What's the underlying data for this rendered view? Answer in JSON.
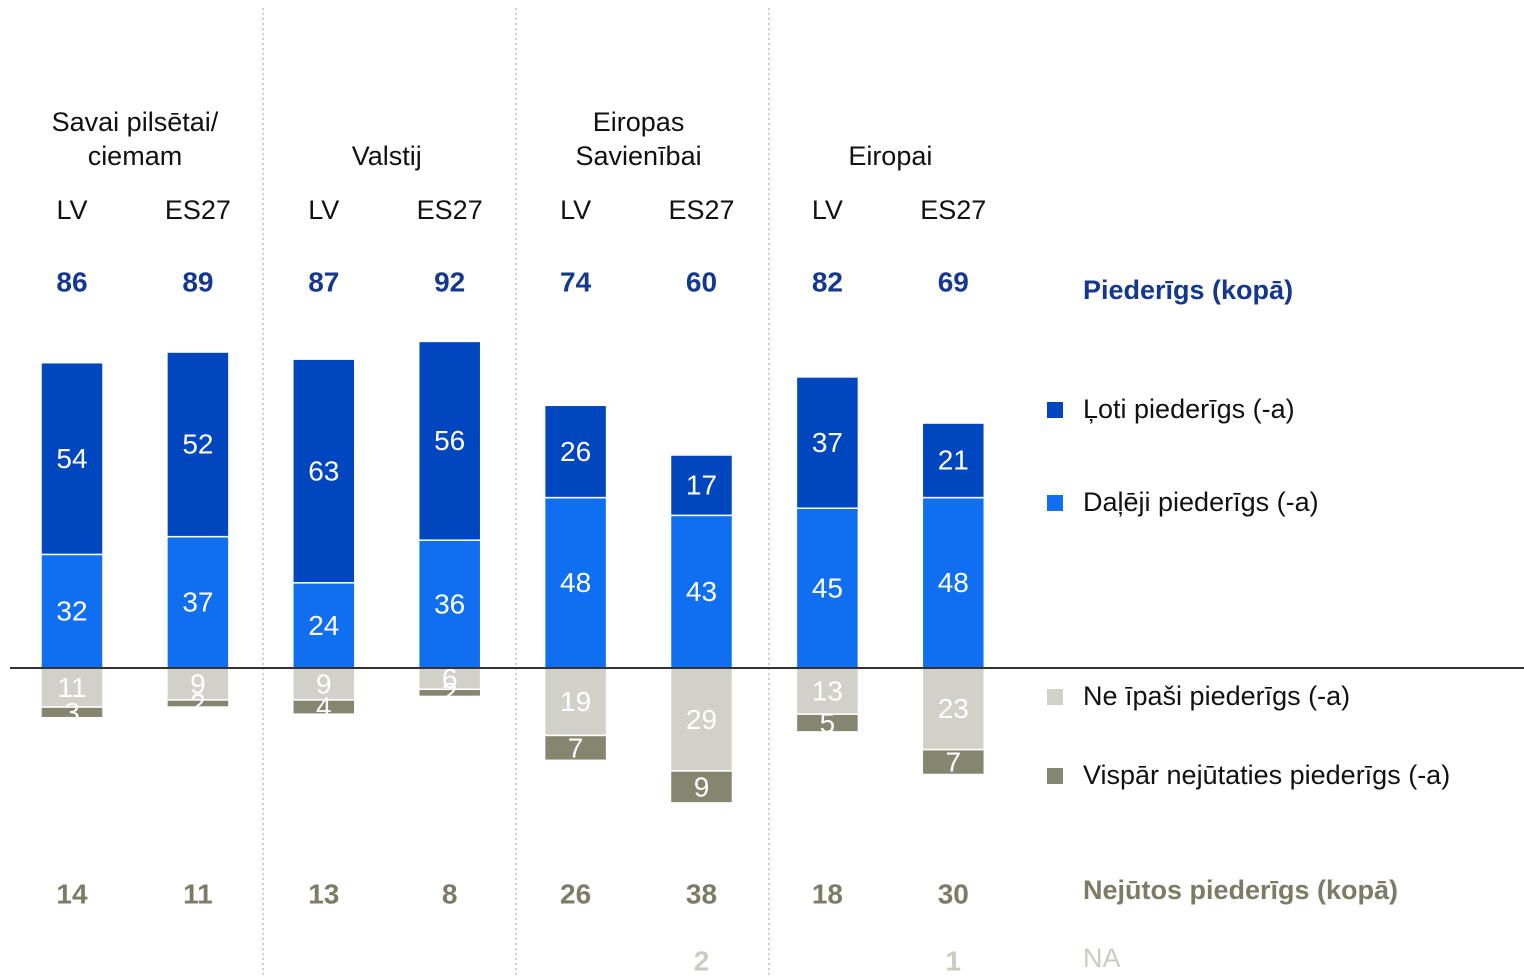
{
  "chart_data": {
    "type": "diverging_stacked_bar",
    "groups": [
      {
        "label": [
          "Savai pilsētai/",
          "ciemam"
        ]
      },
      {
        "label": [
          "Valstij"
        ]
      },
      {
        "label": [
          "Eiropas",
          "Savienībai"
        ]
      },
      {
        "label": [
          "Eiropai"
        ]
      }
    ],
    "categories": [
      "LV",
      "ES27",
      "LV",
      "ES27",
      "LV",
      "ES27",
      "LV",
      "ES27"
    ],
    "series": [
      {
        "name": "Daļēji piederīgs (-a)",
        "color": "#0f6ff0",
        "direction": "up",
        "values": [
          32,
          37,
          24,
          36,
          48,
          43,
          45,
          48
        ]
      },
      {
        "name": "Ļoti piederīgs (-a)",
        "color": "#0046be",
        "direction": "up",
        "values": [
          54,
          52,
          63,
          56,
          26,
          17,
          37,
          21
        ]
      },
      {
        "name": "Ne īpaši piederīgs (-a)",
        "color": "#d2d1c9",
        "direction": "down",
        "values": [
          11,
          9,
          9,
          6,
          19,
          29,
          13,
          23
        ]
      },
      {
        "name": "Vispār nejūtaties piederīgs (-a)",
        "color": "#85866f",
        "direction": "down",
        "values": [
          3,
          2,
          4,
          2,
          7,
          9,
          5,
          7
        ]
      }
    ],
    "totals": [
      {
        "name": "Piederīgs (kopā)",
        "color": "#15388f",
        "values": [
          86,
          89,
          87,
          92,
          74,
          60,
          82,
          69
        ]
      },
      {
        "name": "Nejūtos piederīgs (kopā)",
        "color": "#7c7c66",
        "values": [
          14,
          11,
          13,
          8,
          26,
          38,
          18,
          30
        ]
      },
      {
        "name": "NA",
        "color": "#cbcbc0",
        "values": [
          null,
          null,
          null,
          null,
          null,
          2,
          null,
          1
        ]
      }
    ]
  }
}
